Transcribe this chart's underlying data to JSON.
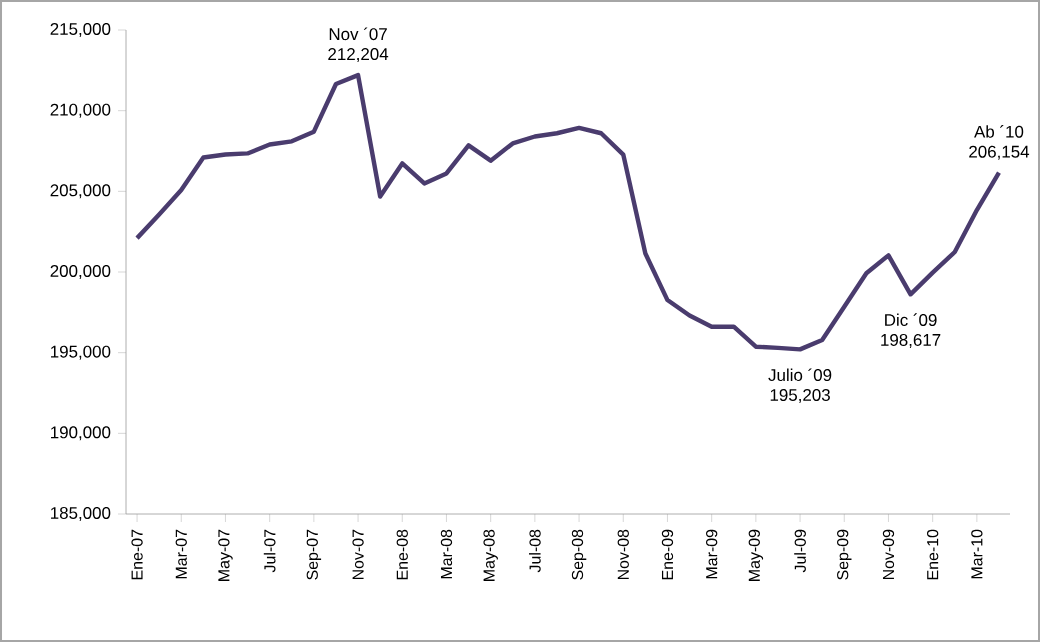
{
  "chart_data": {
    "type": "line",
    "categories": [
      "Ene-07",
      null,
      "Mar-07",
      null,
      "May-07",
      null,
      "Jul-07",
      null,
      "Sep-07",
      null,
      "Nov-07",
      null,
      "Ene-08",
      null,
      "Mar-08",
      null,
      "May-08",
      null,
      "Jul-08",
      null,
      "Sep-08",
      null,
      "Nov-08",
      null,
      "Ene-09",
      null,
      "Mar-09",
      null,
      "May-09",
      null,
      "Jul-09",
      null,
      "Sep-09",
      null,
      "Nov-09",
      null,
      "Ene-10",
      null,
      "Mar-10",
      null
    ],
    "series": [
      {
        "color": "#4a3c6e",
        "values": [
          202100,
          203560,
          205080,
          207100,
          207280,
          207350,
          207900,
          208100,
          208700,
          211650,
          212204,
          204680,
          206730,
          205490,
          206110,
          207850,
          206900,
          207970,
          208400,
          208600,
          208930,
          208600,
          207280,
          201150,
          198260,
          197300,
          196610,
          196610,
          195370,
          195300,
          195203,
          195780,
          197850,
          199920,
          201030,
          198617,
          199960,
          201240,
          203840,
          206154
        ],
        "value_labels": [
          null,
          null,
          null,
          null,
          null,
          null,
          null,
          null,
          null,
          null,
          "212,204",
          null,
          null,
          null,
          null,
          null,
          null,
          null,
          null,
          null,
          null,
          null,
          null,
          null,
          null,
          null,
          null,
          null,
          null,
          null,
          "195,203",
          null,
          null,
          null,
          null,
          "198,617",
          null,
          null,
          null,
          "206,154"
        ]
      }
    ],
    "ylim": [
      185000,
      215000
    ],
    "yticks": [
      {
        "value": 185000,
        "label": "185,000"
      },
      {
        "value": 190000,
        "label": "190,000"
      },
      {
        "value": 195000,
        "label": "195,000"
      },
      {
        "value": 200000,
        "label": "200,000"
      },
      {
        "value": 205000,
        "label": "205,000"
      },
      {
        "value": 210000,
        "label": "210,000"
      },
      {
        "value": 215000,
        "label": "215,000"
      }
    ],
    "annotations": [
      {
        "text": "Nov ´07",
        "y": 212204
      },
      {
        "text": "Julio ´09",
        "y": 195203
      },
      {
        "text": "Dic ´09",
        "y": 198617
      },
      {
        "text": "Ab ´10",
        "y": 206154
      }
    ],
    "grid": false,
    "marker": "none",
    "line_style": "solid"
  }
}
